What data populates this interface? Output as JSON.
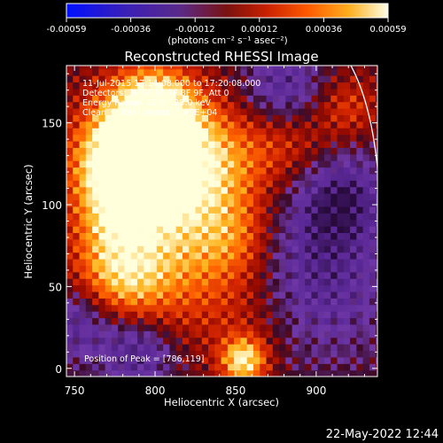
{
  "chart_data": {
    "type": "heatmap",
    "title": "Reconstructed RHESSI Image",
    "xlabel": "Heliocentric X (arcsec)",
    "ylabel": "Heliocentric Y (arcsec)",
    "xlim": [
      745,
      938
    ],
    "ylim": [
      -5,
      185
    ],
    "x_ticks": [
      750,
      800,
      850,
      900
    ],
    "y_ticks": [
      0,
      50,
      100,
      150
    ],
    "colorbar": {
      "unit_label": "(photons cm⁻² s⁻¹ asec⁻²)",
      "range": [
        -0.00059,
        0.00059
      ],
      "ticks": [
        "-0.00059",
        "-0.00036",
        "-0.00012",
        "0.00012",
        "0.00036",
        "0.00059"
      ]
    },
    "annotations": [
      "11-Jul-2015 17:14:08.000 to 17:20:08.000",
      "Detectors: 3F 5F 6F 7F 8F 9F, Att 0",
      "Energy Range: 12.0 - 25.0 keV",
      "Clean     Total counts: 1.49E+04"
    ],
    "peak_label": "Position of Peak = [786,119]",
    "peak": [
      786,
      119
    ],
    "hot_regions": [
      {
        "x": 786,
        "y": 119,
        "radius": 22,
        "level": 1.0
      },
      {
        "x": 800,
        "y": 160,
        "radius": 18,
        "level": 0.85
      },
      {
        "x": 790,
        "y": 135,
        "radius": 25,
        "level": 0.9
      },
      {
        "x": 835,
        "y": 125,
        "radius": 25,
        "level": 0.75
      },
      {
        "x": 810,
        "y": 70,
        "radius": 30,
        "level": 0.7
      },
      {
        "x": 775,
        "y": 55,
        "radius": 20,
        "level": 0.75
      },
      {
        "x": 850,
        "y": 80,
        "radius": 18,
        "level": 0.6
      },
      {
        "x": 860,
        "y": 35,
        "radius": 25,
        "level": 0.55
      },
      {
        "x": 855,
        "y": 5,
        "radius": 10,
        "level": 0.9
      },
      {
        "x": 885,
        "y": 140,
        "radius": 20,
        "level": 0.55
      },
      {
        "x": 920,
        "y": 160,
        "radius": 14,
        "level": 0.55
      },
      {
        "x": 770,
        "y": 90,
        "radius": 15,
        "level": 0.5
      }
    ],
    "cool_regions": [
      {
        "x": 895,
        "y": 55,
        "radius": 35,
        "level": 0.2
      },
      {
        "x": 880,
        "y": 170,
        "radius": 18,
        "level": 0.3
      },
      {
        "x": 915,
        "y": 105,
        "radius": 20,
        "level": 0.3
      },
      {
        "x": 755,
        "y": 30,
        "radius": 18,
        "level": 0.25
      },
      {
        "x": 790,
        "y": 10,
        "radius": 15,
        "level": 0.3
      }
    ]
  },
  "footer": {
    "date": "22-May-2022 12:44"
  }
}
